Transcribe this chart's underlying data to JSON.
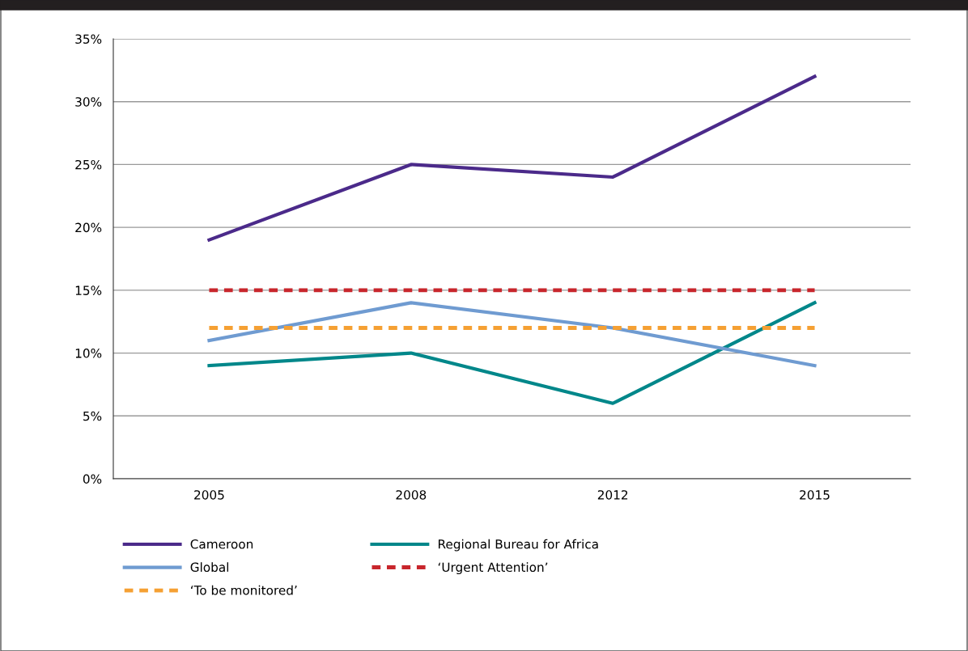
{
  "chart_data": {
    "type": "line",
    "categories": [
      "2005",
      "2008",
      "2012",
      "2015"
    ],
    "series": [
      {
        "name": "Cameroon",
        "color": "#4b2a8a",
        "values": [
          19,
          25,
          24,
          32
        ]
      },
      {
        "name": "Regional Bureau for Africa",
        "color": "#00878a",
        "values": [
          9,
          10,
          6,
          14
        ]
      },
      {
        "name": "Global",
        "color": "#6f9bd1",
        "values": [
          11,
          14,
          12,
          9
        ]
      },
      {
        "name": "‘Urgent Attention’",
        "color": "#c8262c",
        "values": [
          15,
          15,
          15,
          15
        ],
        "line_style": "dashed"
      },
      {
        "name": "‘To be monitored’",
        "color": "#f5a033",
        "values": [
          12,
          12,
          12,
          12
        ],
        "line_style": "dashed"
      }
    ],
    "ylim": [
      0,
      35
    ],
    "yticks": [
      {
        "value": 0,
        "label": "0%"
      },
      {
        "value": 5,
        "label": "5%"
      },
      {
        "value": 10,
        "label": "10%"
      },
      {
        "value": 15,
        "label": "15%"
      },
      {
        "value": 20,
        "label": "20%"
      },
      {
        "value": 25,
        "label": "25%"
      },
      {
        "value": 30,
        "label": "30%"
      },
      {
        "value": 35,
        "label": "35%"
      }
    ],
    "grid": "y",
    "legend": "bottom",
    "marker": "none",
    "line_style": "solid"
  }
}
